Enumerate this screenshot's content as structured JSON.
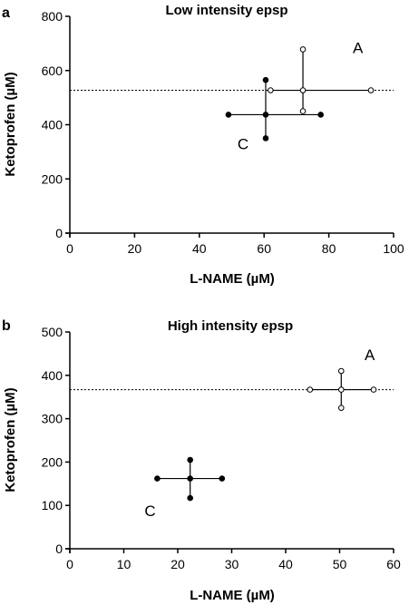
{
  "chart_data": [
    {
      "panel_label": "a",
      "type": "scatter",
      "title": "Low intensity epsp",
      "xlabel": "L-NAME (µM)",
      "ylabel": "Ketoprofen (µM)",
      "xlim": [
        0,
        100
      ],
      "ylim": [
        0,
        800
      ],
      "xticks": [
        "0",
        "20",
        "40",
        "60",
        "80",
        "100"
      ],
      "yticks": [
        "0",
        "200",
        "400",
        "600",
        "800"
      ],
      "reference_line_y": 527,
      "series": [
        {
          "label": "A",
          "marker": "open-circle",
          "center": [
            72,
            527
          ],
          "x_range": [
            62,
            93
          ],
          "y_range": [
            450,
            678
          ]
        },
        {
          "label": "C",
          "marker": "filled-circle",
          "center": [
            60.5,
            437
          ],
          "x_range": [
            49,
            77.5
          ],
          "y_range": [
            350,
            565
          ]
        }
      ]
    },
    {
      "panel_label": "b",
      "type": "scatter",
      "title": "High intensity epsp",
      "xlabel": "L-NAME (µM)",
      "ylabel": "Ketoprofen (µM)",
      "xlim": [
        0,
        60
      ],
      "ylim": [
        0,
        500
      ],
      "xticks": [
        "0",
        "10",
        "20",
        "30",
        "40",
        "50",
        "60"
      ],
      "yticks": [
        "0",
        "100",
        "200",
        "300",
        "400",
        "500"
      ],
      "reference_line_y": 367,
      "series": [
        {
          "label": "A",
          "marker": "open-circle",
          "center": [
            50.3,
            367
          ],
          "x_range": [
            44.5,
            56.3
          ],
          "y_range": [
            325,
            410
          ]
        },
        {
          "label": "C",
          "marker": "filled-circle",
          "center": [
            22.3,
            162
          ],
          "x_range": [
            16.2,
            28.2
          ],
          "y_range": [
            117,
            205
          ]
        }
      ]
    }
  ]
}
